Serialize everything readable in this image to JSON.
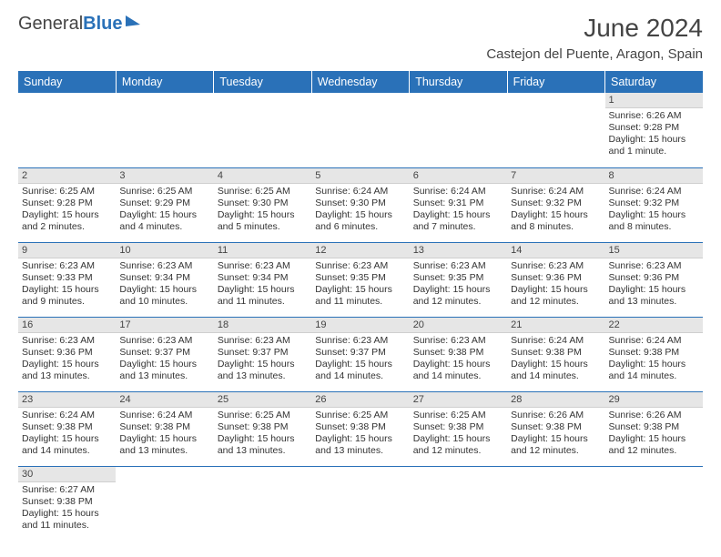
{
  "logo": {
    "part1": "General",
    "part2": "Blue"
  },
  "title": "June 2024",
  "location": "Castejon del Puente, Aragon, Spain",
  "colors": {
    "header_bg": "#2a71b8",
    "header_text": "#ffffff",
    "daynum_bg": "#e6e6e6",
    "rule": "#2a71b8",
    "body_bg": "#ffffff"
  },
  "typography": {
    "title_fontsize": 28,
    "location_fontsize": 15,
    "dayhead_fontsize": 12.5,
    "cell_fontsize": 10.5
  },
  "days_of_week": [
    "Sunday",
    "Monday",
    "Tuesday",
    "Wednesday",
    "Thursday",
    "Friday",
    "Saturday"
  ],
  "weeks": [
    [
      null,
      null,
      null,
      null,
      null,
      null,
      {
        "n": "1",
        "sunrise": "Sunrise: 6:26 AM",
        "sunset": "Sunset: 9:28 PM",
        "daylight": "Daylight: 15 hours and 1 minute."
      }
    ],
    [
      {
        "n": "2",
        "sunrise": "Sunrise: 6:25 AM",
        "sunset": "Sunset: 9:28 PM",
        "daylight": "Daylight: 15 hours and 2 minutes."
      },
      {
        "n": "3",
        "sunrise": "Sunrise: 6:25 AM",
        "sunset": "Sunset: 9:29 PM",
        "daylight": "Daylight: 15 hours and 4 minutes."
      },
      {
        "n": "4",
        "sunrise": "Sunrise: 6:25 AM",
        "sunset": "Sunset: 9:30 PM",
        "daylight": "Daylight: 15 hours and 5 minutes."
      },
      {
        "n": "5",
        "sunrise": "Sunrise: 6:24 AM",
        "sunset": "Sunset: 9:30 PM",
        "daylight": "Daylight: 15 hours and 6 minutes."
      },
      {
        "n": "6",
        "sunrise": "Sunrise: 6:24 AM",
        "sunset": "Sunset: 9:31 PM",
        "daylight": "Daylight: 15 hours and 7 minutes."
      },
      {
        "n": "7",
        "sunrise": "Sunrise: 6:24 AM",
        "sunset": "Sunset: 9:32 PM",
        "daylight": "Daylight: 15 hours and 8 minutes."
      },
      {
        "n": "8",
        "sunrise": "Sunrise: 6:24 AM",
        "sunset": "Sunset: 9:32 PM",
        "daylight": "Daylight: 15 hours and 8 minutes."
      }
    ],
    [
      {
        "n": "9",
        "sunrise": "Sunrise: 6:23 AM",
        "sunset": "Sunset: 9:33 PM",
        "daylight": "Daylight: 15 hours and 9 minutes."
      },
      {
        "n": "10",
        "sunrise": "Sunrise: 6:23 AM",
        "sunset": "Sunset: 9:34 PM",
        "daylight": "Daylight: 15 hours and 10 minutes."
      },
      {
        "n": "11",
        "sunrise": "Sunrise: 6:23 AM",
        "sunset": "Sunset: 9:34 PM",
        "daylight": "Daylight: 15 hours and 11 minutes."
      },
      {
        "n": "12",
        "sunrise": "Sunrise: 6:23 AM",
        "sunset": "Sunset: 9:35 PM",
        "daylight": "Daylight: 15 hours and 11 minutes."
      },
      {
        "n": "13",
        "sunrise": "Sunrise: 6:23 AM",
        "sunset": "Sunset: 9:35 PM",
        "daylight": "Daylight: 15 hours and 12 minutes."
      },
      {
        "n": "14",
        "sunrise": "Sunrise: 6:23 AM",
        "sunset": "Sunset: 9:36 PM",
        "daylight": "Daylight: 15 hours and 12 minutes."
      },
      {
        "n": "15",
        "sunrise": "Sunrise: 6:23 AM",
        "sunset": "Sunset: 9:36 PM",
        "daylight": "Daylight: 15 hours and 13 minutes."
      }
    ],
    [
      {
        "n": "16",
        "sunrise": "Sunrise: 6:23 AM",
        "sunset": "Sunset: 9:36 PM",
        "daylight": "Daylight: 15 hours and 13 minutes."
      },
      {
        "n": "17",
        "sunrise": "Sunrise: 6:23 AM",
        "sunset": "Sunset: 9:37 PM",
        "daylight": "Daylight: 15 hours and 13 minutes."
      },
      {
        "n": "18",
        "sunrise": "Sunrise: 6:23 AM",
        "sunset": "Sunset: 9:37 PM",
        "daylight": "Daylight: 15 hours and 13 minutes."
      },
      {
        "n": "19",
        "sunrise": "Sunrise: 6:23 AM",
        "sunset": "Sunset: 9:37 PM",
        "daylight": "Daylight: 15 hours and 14 minutes."
      },
      {
        "n": "20",
        "sunrise": "Sunrise: 6:23 AM",
        "sunset": "Sunset: 9:38 PM",
        "daylight": "Daylight: 15 hours and 14 minutes."
      },
      {
        "n": "21",
        "sunrise": "Sunrise: 6:24 AM",
        "sunset": "Sunset: 9:38 PM",
        "daylight": "Daylight: 15 hours and 14 minutes."
      },
      {
        "n": "22",
        "sunrise": "Sunrise: 6:24 AM",
        "sunset": "Sunset: 9:38 PM",
        "daylight": "Daylight: 15 hours and 14 minutes."
      }
    ],
    [
      {
        "n": "23",
        "sunrise": "Sunrise: 6:24 AM",
        "sunset": "Sunset: 9:38 PM",
        "daylight": "Daylight: 15 hours and 14 minutes."
      },
      {
        "n": "24",
        "sunrise": "Sunrise: 6:24 AM",
        "sunset": "Sunset: 9:38 PM",
        "daylight": "Daylight: 15 hours and 13 minutes."
      },
      {
        "n": "25",
        "sunrise": "Sunrise: 6:25 AM",
        "sunset": "Sunset: 9:38 PM",
        "daylight": "Daylight: 15 hours and 13 minutes."
      },
      {
        "n": "26",
        "sunrise": "Sunrise: 6:25 AM",
        "sunset": "Sunset: 9:38 PM",
        "daylight": "Daylight: 15 hours and 13 minutes."
      },
      {
        "n": "27",
        "sunrise": "Sunrise: 6:25 AM",
        "sunset": "Sunset: 9:38 PM",
        "daylight": "Daylight: 15 hours and 12 minutes."
      },
      {
        "n": "28",
        "sunrise": "Sunrise: 6:26 AM",
        "sunset": "Sunset: 9:38 PM",
        "daylight": "Daylight: 15 hours and 12 minutes."
      },
      {
        "n": "29",
        "sunrise": "Sunrise: 6:26 AM",
        "sunset": "Sunset: 9:38 PM",
        "daylight": "Daylight: 15 hours and 12 minutes."
      }
    ],
    [
      {
        "n": "30",
        "sunrise": "Sunrise: 6:27 AM",
        "sunset": "Sunset: 9:38 PM",
        "daylight": "Daylight: 15 hours and 11 minutes."
      },
      null,
      null,
      null,
      null,
      null,
      null
    ]
  ]
}
